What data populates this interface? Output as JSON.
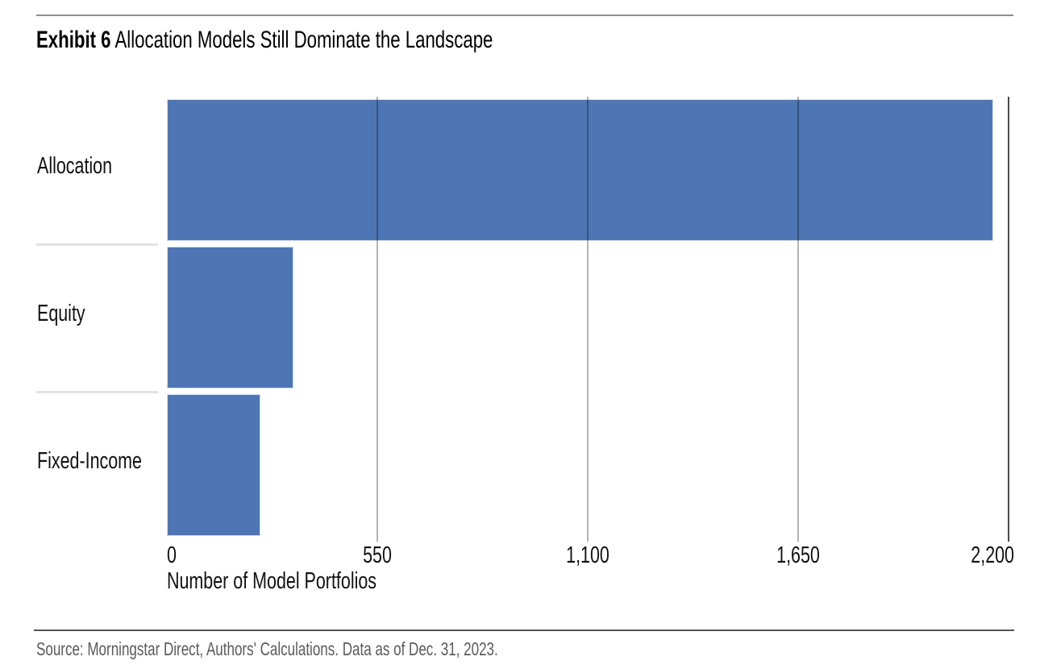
{
  "title": {
    "exhibit": "Exhibit 6",
    "rest": " Allocation Models Still Dominate the Landscape"
  },
  "chart_data": {
    "type": "bar",
    "orientation": "horizontal",
    "title": "Exhibit 6 Allocation Models Still Dominate the Landscape",
    "categories": [
      "Allocation",
      "Equity",
      "Fixed-Income"
    ],
    "values": [
      2160,
      330,
      245
    ],
    "xlabel": "Number of Model Portfolios",
    "ylabel": "",
    "xlim": [
      0,
      2200
    ],
    "xticks": [
      0,
      550,
      1100,
      1650,
      2200
    ],
    "xtick_labels": [
      "0",
      "550",
      "1,100",
      "1,650",
      "2,200"
    ],
    "grid": true,
    "legend": "none",
    "bar_color": "#4E76B5",
    "gridline_color": "#b3b3b3",
    "axis_end_line_color": "#4a4a4a"
  },
  "source": {
    "text": "Source: Morningstar Direct, Authors' Calculations. Data as of Dec. 31, 2023."
  }
}
